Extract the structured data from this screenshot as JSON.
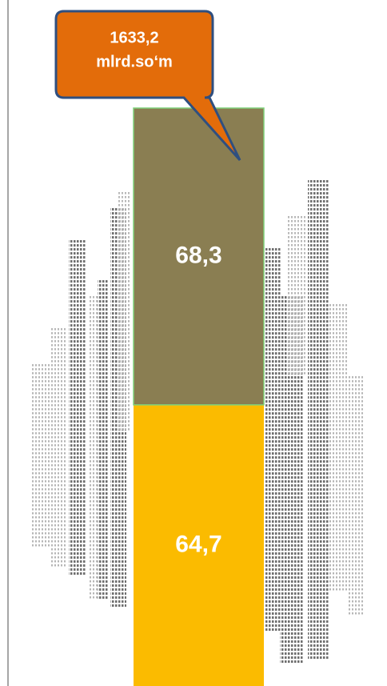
{
  "chart_data": {
    "type": "stacked-bar",
    "categories": [
      null
    ],
    "series": [
      {
        "color": "#fbbb00",
        "values": [
          64.7
        ],
        "value_labels": [
          "64,7"
        ]
      },
      {
        "color": "#8a7e52",
        "values": [
          68.3
        ],
        "value_labels": [
          "68,3"
        ]
      }
    ],
    "annotation": [
      "1633,2",
      "mlrd.so‘m"
    ],
    "annotation_color": "#e36c0a"
  }
}
